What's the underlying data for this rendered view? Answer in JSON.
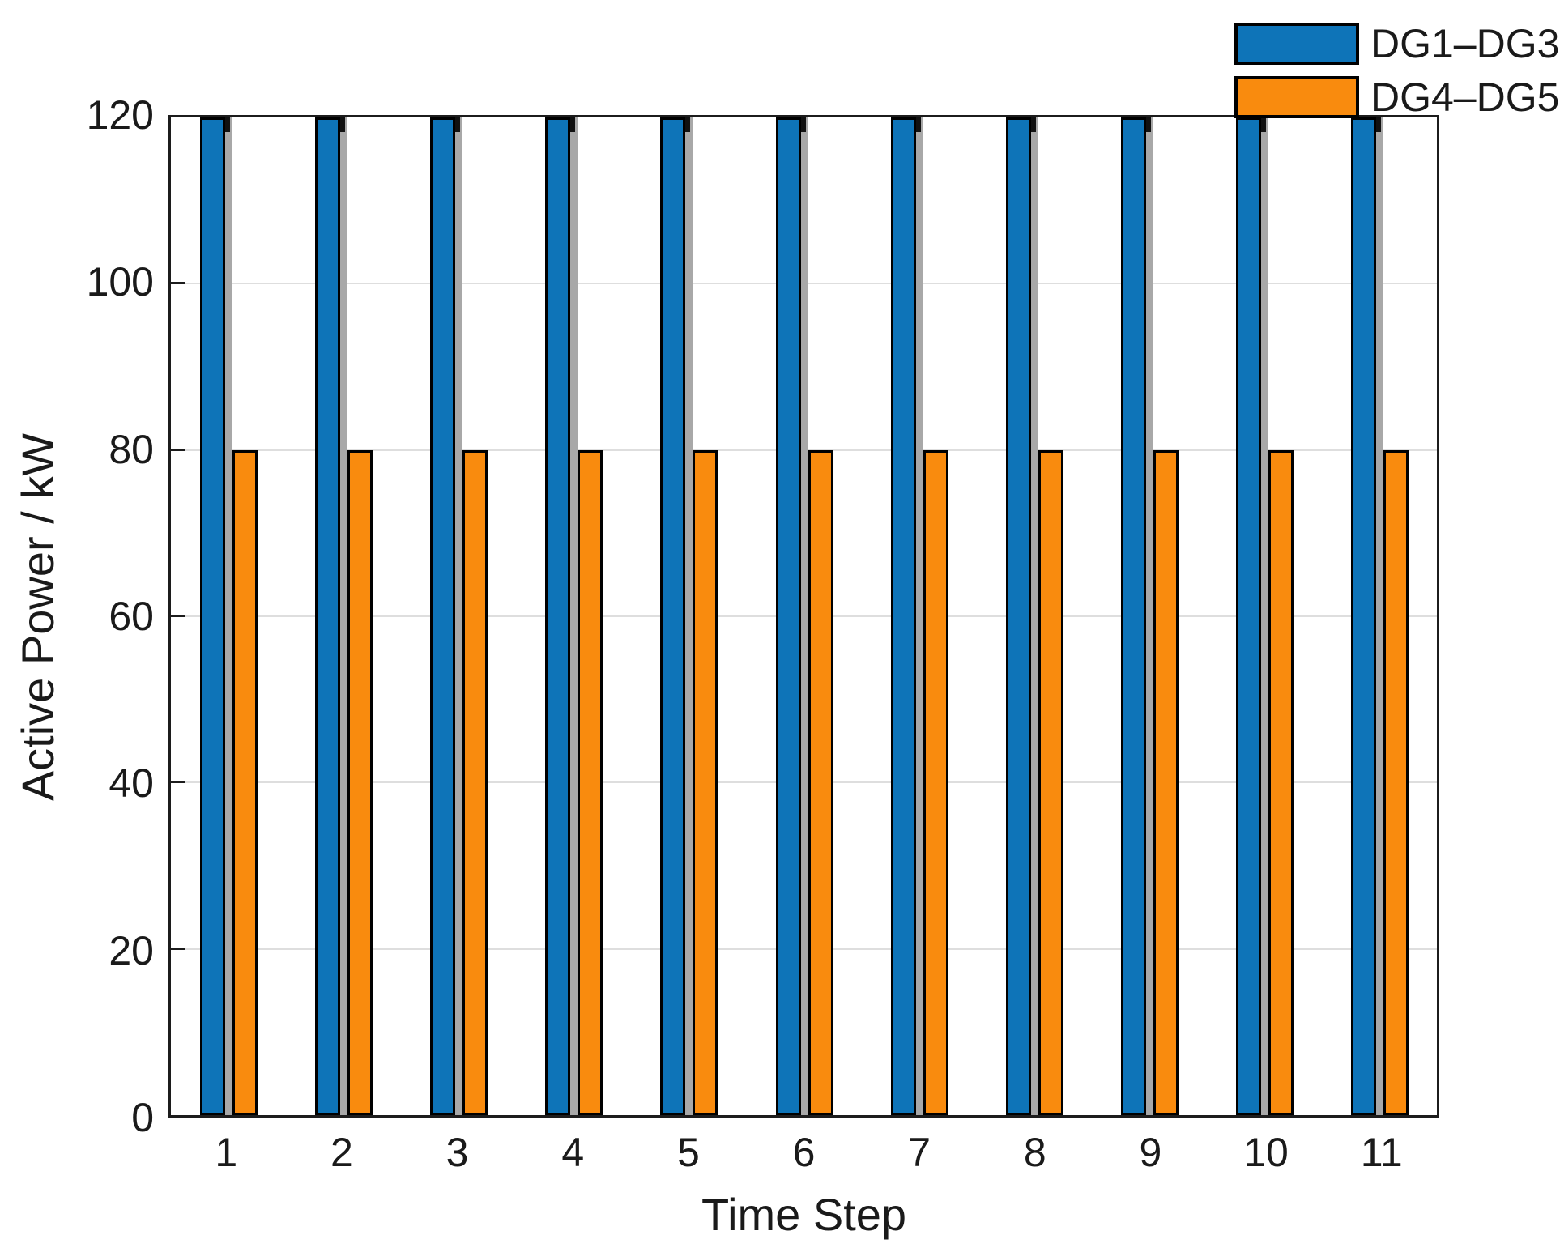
{
  "figure": {
    "xlabel": "Time Step",
    "ylabel": "Active Power / kW"
  },
  "legend": {
    "items": [
      {
        "label": "DG1–DG3",
        "color": "#0e74b8"
      },
      {
        "label": "DG4–DG5",
        "color": "#f98b0e"
      }
    ]
  },
  "chart_data": {
    "type": "bar",
    "categories": [
      "1",
      "2",
      "3",
      "4",
      "5",
      "6",
      "7",
      "8",
      "9",
      "10",
      "11"
    ],
    "series": [
      {
        "name": "DG1–DG3",
        "color": "#0e74b8",
        "edge_color": "#000000",
        "values": [
          120,
          120,
          120,
          120,
          120,
          120,
          120,
          120,
          120,
          120,
          120
        ]
      },
      {
        "name": "DG4–DG5",
        "color": "#f98b0e",
        "edge_color": "#000000",
        "values": [
          80,
          80,
          80,
          80,
          80,
          80,
          80,
          80,
          80,
          80,
          80
        ]
      }
    ],
    "title": "",
    "xlabel": "Time Step",
    "ylabel": "Active Power / kW",
    "ylim": [
      0,
      120
    ],
    "yticks": [
      0,
      20,
      40,
      60,
      80,
      100,
      120
    ],
    "xticks": [
      1,
      2,
      3,
      4,
      5,
      6,
      7,
      8,
      9,
      10,
      11
    ],
    "grid": "horizontal",
    "legend_position": "top-right",
    "bars_clipped_at_ymax": true
  }
}
